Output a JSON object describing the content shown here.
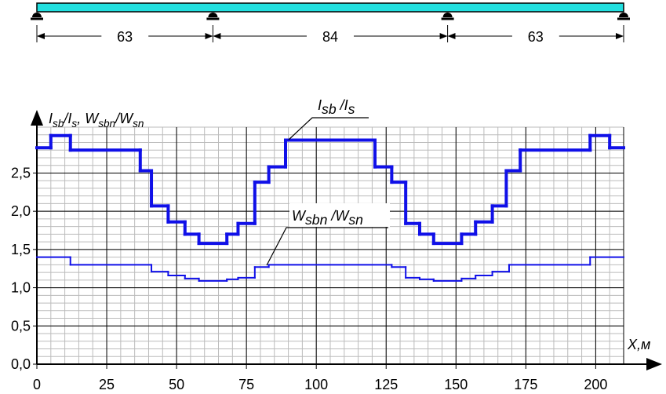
{
  "chart_data": {
    "type": "step",
    "beam": {
      "spans": [
        63,
        84,
        63
      ]
    },
    "y_label": [
      {
        "text": "I"
      },
      {
        "sub": "sb"
      },
      {
        "text": "/I"
      },
      {
        "sub": "s"
      },
      {
        "text": ", W"
      },
      {
        "sub": "sbn"
      },
      {
        "text": "/W"
      },
      {
        "sub": "sn"
      }
    ],
    "x_label": "X,м",
    "xlim": [
      0,
      210
    ],
    "xticks": [
      0,
      25,
      50,
      75,
      100,
      125,
      150,
      175,
      200
    ],
    "ylim": [
      0,
      3.1
    ],
    "yticks": [
      {
        "value": 0,
        "label": "0,0"
      },
      {
        "value": 0.5,
        "label": "0,5"
      },
      {
        "value": 1,
        "label": "1,0"
      },
      {
        "value": 1.5,
        "label": "1,5"
      },
      {
        "value": 2,
        "label": "2,0"
      },
      {
        "value": 2.5,
        "label": "2,5"
      }
    ],
    "grid": true,
    "series": [
      {
        "name": [
          {
            "text": "I"
          },
          {
            "sub": "sb"
          },
          {
            "text": " /I"
          },
          {
            "sub": "s"
          }
        ],
        "color": "#1010e8",
        "width": 4,
        "bins": [
          0,
          5,
          12,
          37,
          41,
          47,
          53,
          58,
          68,
          72,
          78,
          83,
          89,
          121,
          127,
          132,
          137,
          142,
          152,
          157,
          163,
          168,
          173,
          198,
          205,
          210
        ],
        "values": [
          2.83,
          2.99,
          2.8,
          2.53,
          2.07,
          1.86,
          1.7,
          1.58,
          1.7,
          1.84,
          2.38,
          2.58,
          2.93,
          2.58,
          2.38,
          1.84,
          1.7,
          1.58,
          1.7,
          1.86,
          2.07,
          2.53,
          2.8,
          2.99,
          2.83
        ]
      },
      {
        "name": [
          {
            "text": "W"
          },
          {
            "sub": "sbn"
          },
          {
            "text": " /W"
          },
          {
            "sub": "sn"
          }
        ],
        "color": "#1010e8",
        "width": 2,
        "bins": [
          0,
          12,
          41,
          47,
          53,
          58,
          68,
          72,
          78,
          83,
          127,
          132,
          137,
          142,
          152,
          157,
          163,
          169,
          198,
          210
        ],
        "values": [
          1.4,
          1.3,
          1.21,
          1.16,
          1.12,
          1.09,
          1.11,
          1.13,
          1.27,
          1.3,
          1.27,
          1.13,
          1.11,
          1.09,
          1.12,
          1.16,
          1.21,
          1.3,
          1.4
        ]
      }
    ]
  }
}
